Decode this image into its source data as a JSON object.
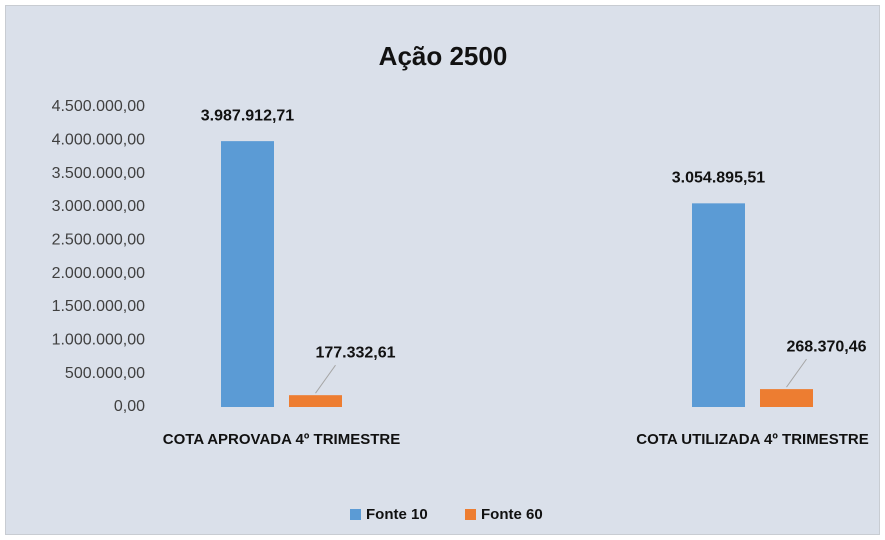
{
  "chart_data": {
    "type": "bar",
    "title": "Ação 2500",
    "categories": [
      "COTA APROVADA 4º TRIMESTRE",
      "COTA UTILIZADA 4º TRIMESTRE"
    ],
    "series": [
      {
        "name": "Fonte 10",
        "color": "#5b9bd5",
        "values": [
          3987912.71,
          3054895.51
        ],
        "value_labels": [
          "3.987.912,71",
          "3.054.895,51"
        ]
      },
      {
        "name": "Fonte 60",
        "color": "#ed7d31",
        "values": [
          177332.61,
          268370.46
        ],
        "value_labels": [
          "177.332,61",
          "268.370,46"
        ]
      }
    ],
    "ylim": [
      0,
      4500000
    ],
    "yticks": [
      {
        "value": 0,
        "label": "0,00"
      },
      {
        "value": 500000,
        "label": "500.000,00"
      },
      {
        "value": 1000000,
        "label": "1.000.000,00"
      },
      {
        "value": 1500000,
        "label": "1.500.000,00"
      },
      {
        "value": 2000000,
        "label": "2.000.000,00"
      },
      {
        "value": 2500000,
        "label": "2.500.000,00"
      },
      {
        "value": 3000000,
        "label": "3.000.000,00"
      },
      {
        "value": 3500000,
        "label": "3.500.000,00"
      },
      {
        "value": 4000000,
        "label": "4.000.000,00"
      },
      {
        "value": 4500000,
        "label": "4.500.000,00"
      }
    ],
    "grid": false,
    "legend": "bottom"
  }
}
